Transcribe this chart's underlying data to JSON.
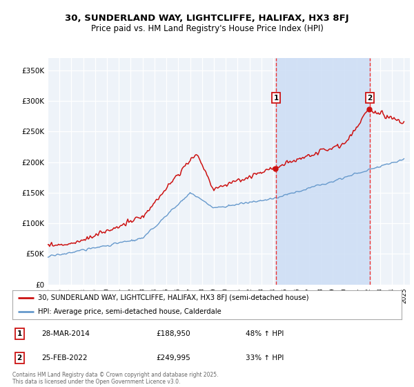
{
  "title": "30, SUNDERLAND WAY, LIGHTCLIFFE, HALIFAX, HX3 8FJ",
  "subtitle": "Price paid vs. HM Land Registry's House Price Index (HPI)",
  "ylabel_ticks": [
    "£0",
    "£50K",
    "£100K",
    "£150K",
    "£200K",
    "£250K",
    "£300K",
    "£350K"
  ],
  "ytick_values": [
    0,
    50000,
    100000,
    150000,
    200000,
    250000,
    300000,
    350000
  ],
  "ylim": [
    0,
    370000
  ],
  "xstart_year": 1995,
  "xend_year": 2025,
  "sale1_x": 2014.23,
  "sale1_price": 188950,
  "sale1_label": "1",
  "sale1_date": "28-MAR-2014",
  "sale1_hpi": "48% ↑ HPI",
  "sale2_x": 2022.12,
  "sale2_price": 249995,
  "sale2_label": "2",
  "sale2_date": "25-FEB-2022",
  "sale2_hpi": "33% ↑ HPI",
  "legend_line1": "30, SUNDERLAND WAY, LIGHTCLIFFE, HALIFAX, HX3 8FJ (semi-detached house)",
  "legend_line2": "HPI: Average price, semi-detached house, Calderdale",
  "footer": "Contains HM Land Registry data © Crown copyright and database right 2025.\nThis data is licensed under the Open Government Licence v3.0.",
  "hpi_color": "#6699cc",
  "price_color": "#cc1111",
  "vline_color": "#ee3333",
  "shade_color": "#ccddf5",
  "box_color": "#cc1111",
  "background_color": "#ffffff",
  "plot_bg_color": "#eef3f9"
}
